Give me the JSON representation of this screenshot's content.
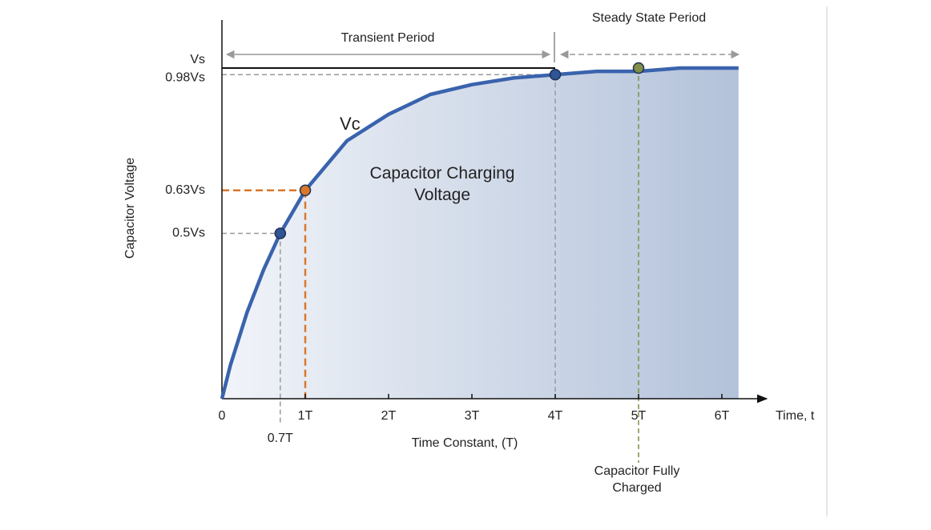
{
  "chart_data": {
    "type": "line",
    "x_label": "Time Constant, (T)",
    "y_label": "Capacitor Voltage",
    "x_axis_end_label": "Time, t",
    "xlim": [
      0,
      6.5
    ],
    "ylim": [
      0,
      1.14
    ],
    "xticks": [
      0,
      {
        "value": 1,
        "label": "1T",
        "color": "#d9772b"
      },
      {
        "value": 2,
        "label": "2T"
      },
      {
        "value": 3,
        "label": "3T"
      },
      {
        "value": 4,
        "label": "4T"
      },
      {
        "value": 5,
        "label": "5T",
        "color": "#8c9a4c"
      },
      {
        "value": 6,
        "label": "6T"
      }
    ],
    "yticks": [
      {
        "value": 1,
        "label": "Vs"
      },
      {
        "value": 0.98,
        "label": "0.98Vs"
      },
      {
        "value": 0.63,
        "label": "0.63Vs",
        "color": "#d9772b"
      },
      {
        "value": 0.5,
        "label": "0.5Vs"
      }
    ],
    "x": [
      0,
      0.05,
      0.1,
      0.2,
      0.3,
      0.5,
      0.7,
      1,
      1.5,
      2,
      2.5,
      3,
      3.5,
      4,
      4.5,
      5,
      5.5,
      6,
      6.2
    ],
    "series": [
      {
        "name": "Vc",
        "color": "#3a63ad",
        "values": [
          0,
          0.05,
          0.1,
          0.18,
          0.26,
          0.39,
          0.5,
          0.63,
          0.78,
          0.86,
          0.92,
          0.95,
          0.97,
          0.98,
          0.99,
          0.99,
          1,
          1,
          1
        ]
      }
    ],
    "points": {
      "x": [
        0.7,
        1,
        4,
        5
      ],
      "values": [
        0.5,
        0.63,
        0.98,
        1
      ],
      "x_labels": [
        "0.7T",
        null,
        null,
        null
      ],
      "colors": [
        "#2f5597",
        "#d9772b",
        "#2f5597",
        "#7f8f48"
      ],
      "guide_colors": [
        "#9a9a9a",
        "#d9772b",
        "#9a9a9a",
        "#7f8f48"
      ]
    },
    "annotations": {
      "transient": "Transient Period",
      "steady": "Steady State Period",
      "area_label": "Capacitor Charging Voltage",
      "fully_charged": "Capacitor Fully Charged"
    }
  }
}
